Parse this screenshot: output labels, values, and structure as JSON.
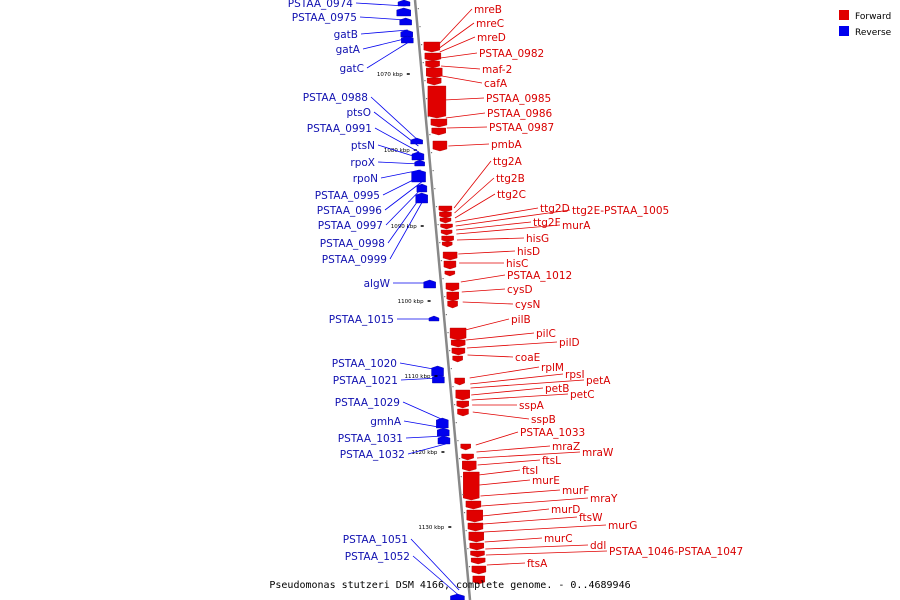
{
  "caption": "Pseudomonas stutzeri DSM 4166, complete genome. - 0..4689946",
  "legend": [
    {
      "label": "Forward",
      "color": "#e00000"
    },
    {
      "label": "Reverse",
      "color": "#0000ee"
    }
  ],
  "colors": {
    "forward": "#e00000",
    "reverse": "#0000ee",
    "backbone": "#888888",
    "forward_label": "#d80000",
    "reverse_label": "#1010b0"
  },
  "ticks": [
    "1070 kbp",
    "1080 kbp",
    "1090 kbp",
    "1100 kbp",
    "1110 kbp",
    "1120 kbp",
    "1130 kbp"
  ],
  "forward_genes": [
    "mreB",
    "mreC",
    "mreD",
    "PSTAA_0982",
    "maf-2",
    "cafA",
    "PSTAA_0985",
    "PSTAA_0986",
    "PSTAA_0987",
    "pmbA",
    "ttg2A",
    "ttg2B",
    "ttg2C",
    "ttg2D",
    "ttg2E-PSTAA_1005",
    "ttg2F",
    "murA",
    "hisG",
    "hisD",
    "hisC",
    "PSTAA_1012",
    "cysD",
    "cysN",
    "pilB",
    "pilC",
    "pilD",
    "coaE",
    "rplM",
    "rpsI",
    "petA",
    "petB",
    "petC",
    "sspA",
    "sspB",
    "PSTAA_1033",
    "mraZ",
    "mraW",
    "ftsL",
    "ftsI",
    "murE",
    "murF",
    "mraY",
    "murD",
    "ftsW",
    "murG",
    "murC",
    "ddl",
    "PSTAA_1046-PSTAA_1047",
    "ftsA"
  ],
  "reverse_genes": [
    "PSTAA_0974",
    "PSTAA_0975",
    "gatB",
    "gatA",
    "gatC",
    "PSTAA_0988",
    "ptsO",
    "PSTAA_0991",
    "ptsN",
    "rpoX",
    "rpoN",
    "PSTAA_0995",
    "PSTAA_0996",
    "PSTAA_0997",
    "PSTAA_0998",
    "PSTAA_0999",
    "algW",
    "PSTAA_1015",
    "PSTAA_1020",
    "PSTAA_1021",
    "PSTAA_1029",
    "gmhA",
    "PSTAA_1031",
    "PSTAA_1032",
    "PSTAA_1051",
    "PSTAA_1052"
  ]
}
